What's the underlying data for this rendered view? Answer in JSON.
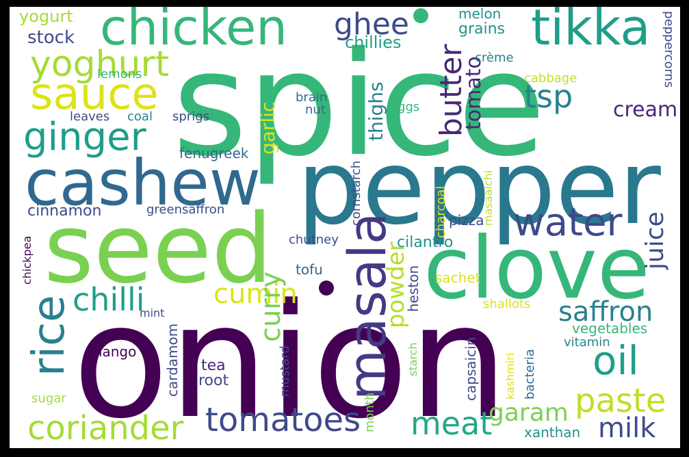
{
  "words": [
    {
      "text": "spice",
      "color": "#35b779"
    },
    {
      "text": "onion",
      "color": "#440154"
    },
    {
      "text": "pepper",
      "color": "#2a788e"
    },
    {
      "text": "seed",
      "color": "#7ad151"
    },
    {
      "text": "clove",
      "color": "#35b779"
    },
    {
      "text": "cashew",
      "color": "#31688e"
    },
    {
      "text": "masala",
      "color": "#443983"
    },
    {
      "text": "chicken",
      "color": "#35b779"
    },
    {
      "text": "tikka",
      "color": "#1f9e89"
    },
    {
      "text": "sauce",
      "color": "#dde318"
    },
    {
      "text": "water",
      "color": "#3e4a89"
    },
    {
      "text": "ginger",
      "color": "#1f9e89"
    },
    {
      "text": "yoghurt",
      "color": "#a5db36"
    },
    {
      "text": "rice",
      "color": "#26828e"
    },
    {
      "text": "chilli",
      "color": "#1f9e89"
    },
    {
      "text": "oil",
      "color": "#1f9e89"
    },
    {
      "text": "tomatoes",
      "color": "#3e4a89"
    },
    {
      "text": "coriander",
      "color": "#a5db36"
    },
    {
      "text": "paste",
      "color": "#bddf26"
    },
    {
      "text": "meat",
      "color": "#22a884"
    },
    {
      "text": "saffron",
      "color": "#26828e"
    },
    {
      "text": "butter",
      "color": "#482878"
    },
    {
      "text": "ghee",
      "color": "#3e4a89"
    },
    {
      "text": "tsp",
      "color": "#26828e"
    },
    {
      "text": "cumin",
      "color": "#dde318"
    },
    {
      "text": "curry",
      "color": "#7ad151"
    },
    {
      "text": "milk",
      "color": "#3e4a89"
    },
    {
      "text": "garam",
      "color": "#7ad151"
    },
    {
      "text": "juice",
      "color": "#3e4a89"
    },
    {
      "text": "powder",
      "color": "#b5de2b"
    },
    {
      "text": "cream",
      "color": "#482878"
    },
    {
      "text": "tomato",
      "color": "#482878"
    },
    {
      "text": "thighs",
      "color": "#26828e"
    },
    {
      "text": "garlic",
      "color": "#dde318"
    },
    {
      "text": "stock",
      "color": "#3e4a89"
    },
    {
      "text": "yogurt",
      "color": "#a5db36"
    },
    {
      "text": "cinnamon",
      "color": "#3e4a89"
    },
    {
      "text": "chillies",
      "color": "#1f9e89"
    },
    {
      "text": "grains",
      "color": "#21918c"
    },
    {
      "text": "melon",
      "color": "#21918c"
    },
    {
      "text": "crème",
      "color": "#26828e"
    },
    {
      "text": "peppercorns",
      "color": "#3e4a89"
    },
    {
      "text": "cabbage",
      "color": "#bddf26"
    },
    {
      "text": "lemons",
      "color": "#35b779"
    },
    {
      "text": "brain",
      "color": "#31688e"
    },
    {
      "text": "nut",
      "color": "#31688e"
    },
    {
      "text": "leaves",
      "color": "#3e4a89"
    },
    {
      "text": "coal",
      "color": "#26828e"
    },
    {
      "text": "sprigs",
      "color": "#3e4a89"
    },
    {
      "text": "eggs",
      "color": "#35b779"
    },
    {
      "text": "fenugreek",
      "color": "#31688e"
    },
    {
      "text": "cornstarch",
      "color": "#3e4a89"
    },
    {
      "text": "charcoal",
      "color": "#dde318"
    },
    {
      "text": "masaalchi",
      "color": "#bddf26"
    },
    {
      "text": "greensaffron",
      "color": "#3e4a89"
    },
    {
      "text": "pizza",
      "color": "#3e4a89"
    },
    {
      "text": "chickpea",
      "color": "#440154"
    },
    {
      "text": "chutney",
      "color": "#3e4a89"
    },
    {
      "text": "cilantro",
      "color": "#21918c"
    },
    {
      "text": "tofu",
      "color": "#31688e"
    },
    {
      "text": "sachet",
      "color": "#dde318"
    },
    {
      "text": "heston",
      "color": "#3e4a89"
    },
    {
      "text": "shallots",
      "color": "#dde318"
    },
    {
      "text": "vegetables",
      "color": "#35b779"
    },
    {
      "text": "mint",
      "color": "#3e4a89"
    },
    {
      "text": "vitamin",
      "color": "#26828e"
    },
    {
      "text": "mango",
      "color": "#440154"
    },
    {
      "text": "cardamom",
      "color": "#3e4a89"
    },
    {
      "text": "tea",
      "color": "#482878"
    },
    {
      "text": "root",
      "color": "#3e4a89"
    },
    {
      "text": "mustard",
      "color": "#3e4a89"
    },
    {
      "text": "capsaicin",
      "color": "#3e4a89"
    },
    {
      "text": "starch",
      "color": "#7ad151"
    },
    {
      "text": "kashmiri",
      "color": "#dde318"
    },
    {
      "text": "bacteria",
      "color": "#31688e"
    },
    {
      "text": "month",
      "color": "#7ad151"
    },
    {
      "text": "sugar",
      "color": "#a5db36"
    },
    {
      "text": "xanthan",
      "color": "#21918c"
    }
  ]
}
